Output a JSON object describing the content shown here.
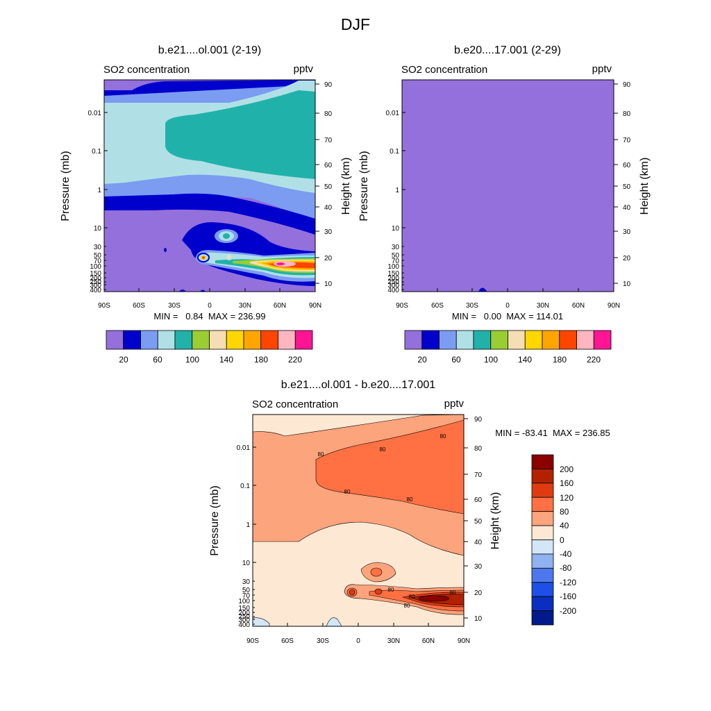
{
  "figure_title": "DJF",
  "chart_data": [
    {
      "type": "heatmap",
      "title": "b.e21....ol.001 (2-19)",
      "left_label": "SO2 concentration",
      "right_label": "pptv",
      "ylabel": "Pressure (mb)",
      "ylabel_right": "Height (km)",
      "x_ticks": [
        "90S",
        "60S",
        "30S",
        "0",
        "30N",
        "60N",
        "90N"
      ],
      "y_ticks": [
        "0.01",
        "0.1",
        "1",
        "10",
        "30",
        "50",
        "70",
        "100",
        "150",
        "200",
        "250",
        "300",
        "400"
      ],
      "y2_ticks": [
        "90",
        "80",
        "70",
        "60",
        "50",
        "40",
        "30",
        "20",
        "10"
      ],
      "stats": "MIN =   0.84  MAX = 236.99",
      "colorbar_labels": [
        "20",
        "60",
        "100",
        "140",
        "180",
        "220"
      ],
      "colorbar_colors": [
        "#9370db",
        "#0000cd",
        "#7b9cf0",
        "#b0e0e6",
        "#20b2aa",
        "#9acd32",
        "#f5deb3",
        "#ffd700",
        "#ffa500",
        "#ff4500",
        "#ffb6c1",
        "#ff1493"
      ]
    },
    {
      "type": "heatmap",
      "title": "b.e20....17.001 (2-29)",
      "left_label": "SO2 concentration",
      "right_label": "pptv",
      "ylabel": "Pressure (mb)",
      "ylabel_right": "Height (km)",
      "x_ticks": [
        "90S",
        "60S",
        "30S",
        "0",
        "30N",
        "60N",
        "90N"
      ],
      "y_ticks": [
        "0.01",
        "0.1",
        "1",
        "10",
        "30",
        "50",
        "70",
        "100",
        "150",
        "200",
        "250",
        "300",
        "400"
      ],
      "y2_ticks": [
        "90",
        "80",
        "70",
        "60",
        "50",
        "40",
        "30",
        "20",
        "10"
      ],
      "stats": "MIN =   0.00  MAX = 114.01",
      "colorbar_labels": [
        "20",
        "60",
        "100",
        "140",
        "180",
        "220"
      ],
      "colorbar_colors": [
        "#9370db",
        "#0000cd",
        "#7b9cf0",
        "#b0e0e6",
        "#20b2aa",
        "#9acd32",
        "#f5deb3",
        "#ffd700",
        "#ffa500",
        "#ff4500",
        "#ffb6c1",
        "#ff1493"
      ]
    },
    {
      "type": "heatmap",
      "title": "b.e21....ol.001 - b.e20....17.001",
      "left_label": "SO2 concentration",
      "right_label": "pptv",
      "ylabel": "Pressure (mb)",
      "ylabel_right": "Height (km)",
      "x_ticks": [
        "90S",
        "60S",
        "30S",
        "0",
        "30N",
        "60N",
        "90N"
      ],
      "y_ticks": [
        "0.01",
        "0.1",
        "1",
        "10",
        "30",
        "50",
        "70",
        "100",
        "150",
        "200",
        "250",
        "300",
        "400"
      ],
      "y2_ticks": [
        "90",
        "80",
        "70",
        "60",
        "50",
        "40",
        "30",
        "20",
        "10"
      ],
      "stats": "MIN = -83.41  MAX = 236.85",
      "contour_label": "80",
      "colorbar_labels": [
        "200",
        "160",
        "120",
        "80",
        "40",
        "0",
        "-40",
        "-80",
        "-120",
        "-160",
        "-200"
      ],
      "colorbar_colors": [
        "#8b0000",
        "#b22200",
        "#e03b10",
        "#ff7043",
        "#fca47c",
        "#fde8d4",
        "#d2e6f8",
        "#8fb2f0",
        "#4c78ec",
        "#1e4fe6",
        "#0a2fc0",
        "#001a8c"
      ]
    }
  ]
}
